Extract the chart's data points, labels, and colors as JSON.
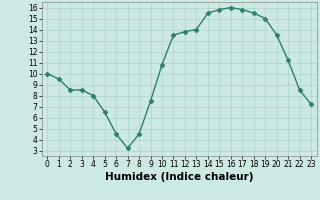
{
  "x": [
    0,
    1,
    2,
    3,
    4,
    5,
    6,
    7,
    8,
    9,
    10,
    11,
    12,
    13,
    14,
    15,
    16,
    17,
    18,
    19,
    20,
    21,
    22,
    23
  ],
  "y": [
    10,
    9.5,
    8.5,
    8.5,
    8,
    6.5,
    4.5,
    3.2,
    4.5,
    7.5,
    10.8,
    13.5,
    13.8,
    14,
    15.5,
    15.8,
    16,
    15.8,
    15.5,
    15,
    13.5,
    11.2,
    8.5,
    7.2
  ],
  "line_color": "#2e7d6e",
  "marker": "D",
  "marker_size": 2.5,
  "bg_color": "#cce9e4",
  "grid_color": "#aad4cc",
  "xlabel": "Humidex (Indice chaleur)",
  "xlim": [
    -0.5,
    23.5
  ],
  "ylim": [
    2.5,
    16.5
  ],
  "yticks": [
    3,
    4,
    5,
    6,
    7,
    8,
    9,
    10,
    11,
    12,
    13,
    14,
    15,
    16
  ],
  "xticks": [
    0,
    1,
    2,
    3,
    4,
    5,
    6,
    7,
    8,
    9,
    10,
    11,
    12,
    13,
    14,
    15,
    16,
    17,
    18,
    19,
    20,
    21,
    22,
    23
  ],
  "tick_fontsize": 5.5,
  "xlabel_fontsize": 7.5,
  "line_width": 1.0
}
